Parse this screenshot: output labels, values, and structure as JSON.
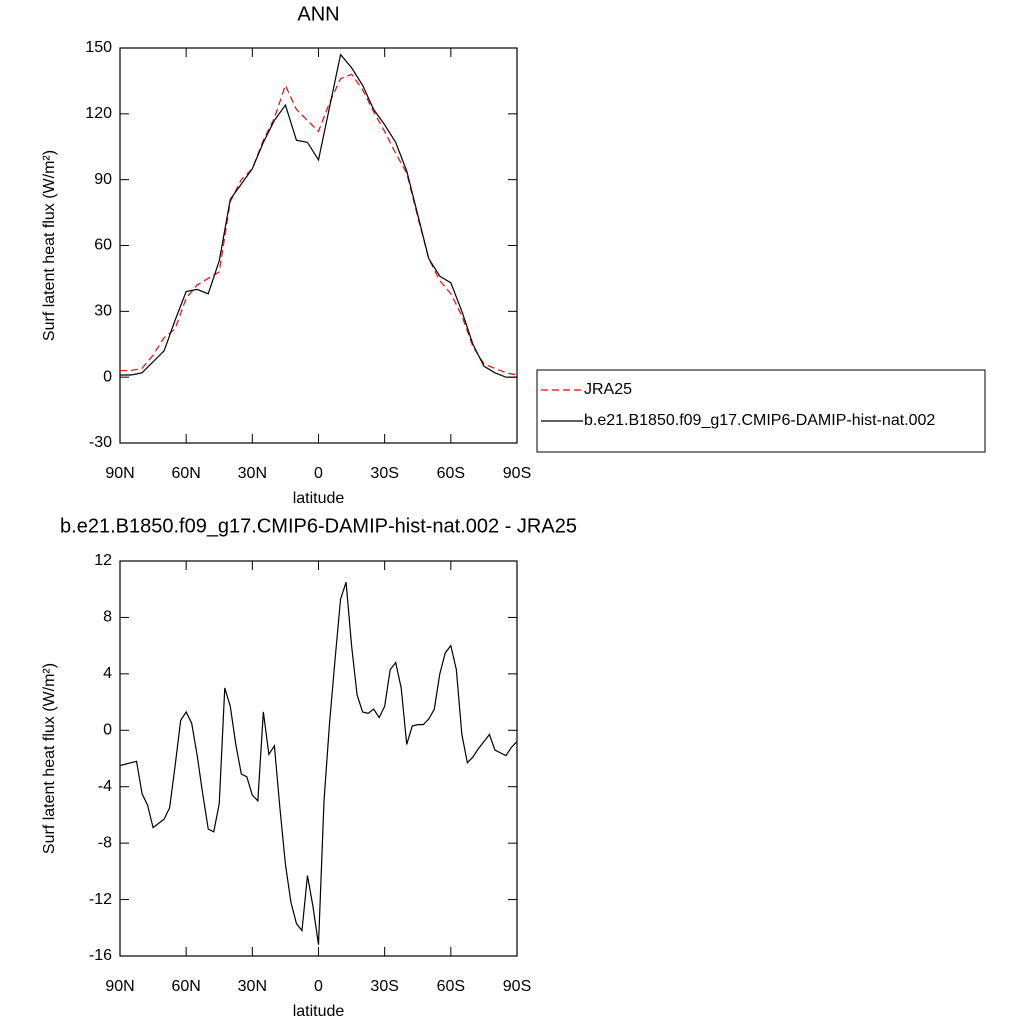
{
  "chart_data": [
    {
      "type": "line",
      "title": "ANN",
      "xlabel": "latitude",
      "ylabel": "Surf latent heat flux (W/m²)",
      "legend": "right",
      "x": [
        90,
        85,
        80,
        75,
        70,
        65,
        60,
        55,
        50,
        45,
        40,
        35,
        30,
        25,
        20,
        15,
        10,
        5,
        0,
        -5,
        -10,
        -15,
        -20,
        -25,
        -30,
        -35,
        -40,
        -45,
        -50,
        -55,
        -60,
        -65,
        -70,
        -75,
        -80,
        -85,
        -90
      ],
      "series": [
        {
          "name": "JRA25",
          "color": "#ff0000",
          "dash": true,
          "values": [
            3,
            3,
            4,
            10,
            18,
            22,
            36,
            42,
            45,
            48,
            80,
            90,
            95,
            108,
            118,
            133,
            122,
            117,
            112,
            125,
            136,
            138,
            131,
            121,
            112,
            102,
            93,
            73,
            54,
            44,
            38,
            28,
            14,
            6,
            4,
            2,
            1
          ]
        },
        {
          "name": "b.e21.B1850.f09_g17.CMIP6-DAMIP-hist-nat.002",
          "color": "#000000",
          "dash": false,
          "values": [
            1,
            1,
            2,
            7,
            12,
            26,
            39,
            40,
            38,
            53,
            81,
            88,
            95,
            107,
            117,
            124,
            108,
            107,
            99,
            123,
            147,
            141,
            133,
            122,
            115,
            107,
            94,
            74,
            54,
            46,
            43,
            30,
            15,
            5,
            2,
            0,
            0
          ]
        }
      ],
      "xlim": [
        90,
        -90
      ],
      "xticks": [
        {
          "value": 90,
          "label": "90N"
        },
        {
          "value": 60,
          "label": "60N"
        },
        {
          "value": 30,
          "label": "30N"
        },
        0,
        {
          "value": -30,
          "label": "30S"
        },
        {
          "value": -60,
          "label": "60S"
        },
        {
          "value": -90,
          "label": "90S"
        }
      ],
      "ylim": [
        -30,
        150
      ],
      "yticks": [
        -30,
        0,
        30,
        60,
        90,
        120,
        150
      ]
    },
    {
      "type": "line",
      "title": "b.e21.B1850.f09_g17.CMIP6-DAMIP-hist-nat.002 - JRA25",
      "xlabel": "latitude",
      "ylabel": "Surf latent heat flux (W/m²)",
      "x": [
        90,
        87.5,
        85,
        82.5,
        80,
        77.5,
        75,
        72.5,
        70,
        67.5,
        65,
        62.5,
        60,
        57.5,
        55,
        52.5,
        50,
        47.5,
        45,
        42.5,
        40,
        37.5,
        35,
        32.5,
        30,
        27.5,
        25,
        22.5,
        20,
        17.5,
        15,
        12.5,
        10,
        7.5,
        5,
        2.5,
        0,
        -2.5,
        -5,
        -7.5,
        -10,
        -12.5,
        -15,
        -17.5,
        -20,
        -22.5,
        -25,
        -27.5,
        -30,
        -32.5,
        -35,
        -37.5,
        -40,
        -42.5,
        -45,
        -47.5,
        -50,
        -52.5,
        -55,
        -57.5,
        -60,
        -62.5,
        -65,
        -67.5,
        -70,
        -72.5,
        -75,
        -77.5,
        -80,
        -82.5,
        -85,
        -87.5,
        -90
      ],
      "series": [
        {
          "color": "#000000",
          "values": [
            -2.5,
            -2.4,
            -2.3,
            -2.2,
            -4.5,
            -5.3,
            -6.9,
            -6.6,
            -6.3,
            -5.5,
            -2.5,
            0.7,
            1.3,
            0.5,
            -1.8,
            -4.5,
            -7,
            -7.2,
            -5.2,
            3,
            1.7,
            -1,
            -3.1,
            -3.3,
            -4.6,
            -5,
            1.3,
            -1.7,
            -1.1,
            -5.5,
            -9.5,
            -12.2,
            -13.7,
            -14.2,
            -10.3,
            -12.5,
            -15.2,
            -5,
            0.5,
            5,
            9.3,
            10.5,
            6,
            2.5,
            1.3,
            1.2,
            1.5,
            0.9,
            1.7,
            4.3,
            4.8,
            3,
            -1,
            0.3,
            0.4,
            0.4,
            0.8,
            1.5,
            4,
            5.5,
            6,
            4.3,
            -0.3,
            -2.3,
            -1.9,
            -1.3,
            -0.8,
            -0.3,
            -1.4,
            -1.6,
            -1.8,
            -1.2,
            -0.8
          ]
        }
      ],
      "xlim": [
        90,
        -90
      ],
      "xticks": [
        {
          "value": 90,
          "label": "90N"
        },
        {
          "value": 60,
          "label": "60N"
        },
        {
          "value": 30,
          "label": "30N"
        },
        0,
        {
          "value": -30,
          "label": "30S"
        },
        {
          "value": -60,
          "label": "60S"
        },
        {
          "value": -90,
          "label": "90S"
        }
      ],
      "ylim": [
        -16,
        12
      ],
      "yticks": [
        -16,
        -12,
        -8,
        -4,
        0,
        4,
        8,
        12
      ]
    }
  ]
}
